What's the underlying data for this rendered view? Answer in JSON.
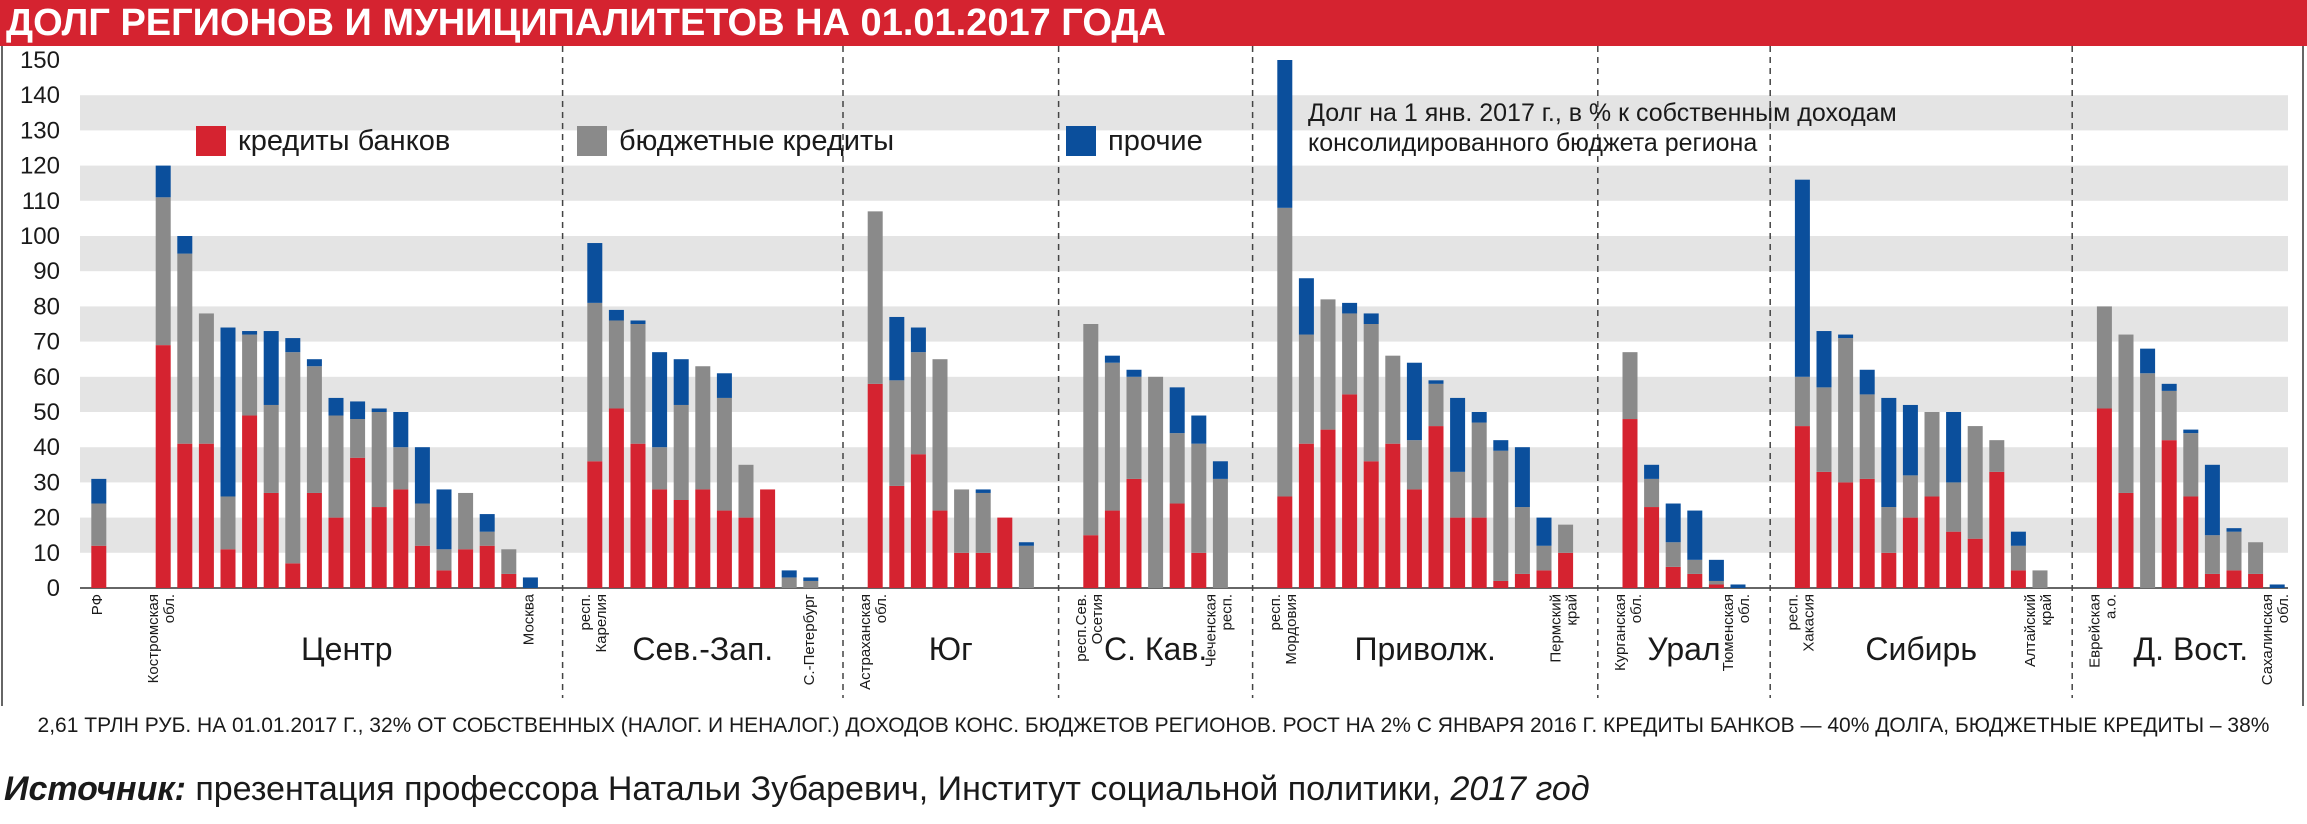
{
  "title": "ДОЛГ РЕГИОНОВ И МУНИЦИПАЛИТЕТОВ НА 01.01.2017 ГОДА",
  "footnote": "2,61 ТРЛН РУБ. НА 01.01.2017 Г., 32% ОТ СОБСТВЕННЫХ (НАЛОГ. И НЕНАЛОГ.) ДОХОДОВ КОНС. БЮДЖЕТОВ РЕГИОНОВ. РОСТ НА 2% С ЯНВАРЯ 2016 Г. КРЕДИТЫ БАНКОВ — 40% ДОЛГА, БЮДЖЕТНЫЕ КРЕДИТЫ – 38%",
  "source": {
    "lead": "Источник:",
    "text": " презентация профессора Натальи Зубаревич, Институт  социальной политики, ",
    "year": "2017 год"
  },
  "chart_data": {
    "type": "bar",
    "stacked": true,
    "annotation": "Долг на 1 янв. 2017 г., в % к собственным доходам консолидированного бюджета региона",
    "annotation_lines": [
      "Долг на 1 янв. 2017 г., в % к собственным доходам",
      "консолидированного бюджета региона"
    ],
    "ylim": [
      0,
      150
    ],
    "yticks": [
      0,
      10,
      20,
      30,
      40,
      50,
      60,
      70,
      80,
      90,
      100,
      110,
      120,
      130,
      140,
      150
    ],
    "grid": "alternating horizontal bands",
    "legend_position": "top",
    "series": [
      {
        "name": "кредиты банков",
        "color": "#d52330"
      },
      {
        "name": "бюджетные кредиты",
        "color": "#8a8a8a"
      },
      {
        "name": "прочие",
        "color": "#0b4f9c"
      }
    ],
    "groups": [
      {
        "name": "",
        "bars": [
          {
            "label": "РФ",
            "values": [
              12,
              12,
              7
            ]
          }
        ]
      },
      {
        "name": "Центр",
        "bars": [
          {
            "label": "Костромская обл.",
            "values": [
              69,
              42,
              9
            ]
          },
          {
            "label": "",
            "values": [
              41,
              54,
              5
            ]
          },
          {
            "label": "",
            "values": [
              41,
              37,
              0
            ]
          },
          {
            "label": "",
            "values": [
              11,
              15,
              48
            ]
          },
          {
            "label": "",
            "values": [
              49,
              23,
              1
            ]
          },
          {
            "label": "",
            "values": [
              27,
              25,
              21
            ]
          },
          {
            "label": "",
            "values": [
              7,
              60,
              4
            ]
          },
          {
            "label": "",
            "values": [
              27,
              36,
              2
            ]
          },
          {
            "label": "",
            "values": [
              20,
              29,
              5
            ]
          },
          {
            "label": "",
            "values": [
              37,
              11,
              5
            ]
          },
          {
            "label": "",
            "values": [
              23,
              27,
              1
            ]
          },
          {
            "label": "",
            "values": [
              28,
              12,
              10
            ]
          },
          {
            "label": "",
            "values": [
              12,
              12,
              16
            ]
          },
          {
            "label": "",
            "values": [
              5,
              6,
              17
            ]
          },
          {
            "label": "",
            "values": [
              11,
              16,
              0
            ]
          },
          {
            "label": "",
            "values": [
              12,
              4,
              5
            ]
          },
          {
            "label": "",
            "values": [
              4,
              7,
              0
            ]
          },
          {
            "label": "Москва",
            "values": [
              0,
              0,
              3
            ]
          }
        ]
      },
      {
        "name": "Сев.-Зап.",
        "bars": [
          {
            "label": "респ. Карелия",
            "values": [
              36,
              45,
              17
            ]
          },
          {
            "label": "",
            "values": [
              51,
              25,
              3
            ]
          },
          {
            "label": "",
            "values": [
              41,
              34,
              1
            ]
          },
          {
            "label": "",
            "values": [
              28,
              12,
              27
            ]
          },
          {
            "label": "",
            "values": [
              25,
              27,
              13
            ]
          },
          {
            "label": "",
            "values": [
              28,
              35,
              0
            ]
          },
          {
            "label": "",
            "values": [
              22,
              32,
              7
            ]
          },
          {
            "label": "",
            "values": [
              20,
              15,
              0
            ]
          },
          {
            "label": "",
            "values": [
              28,
              0,
              0
            ]
          },
          {
            "label": "",
            "values": [
              0,
              3,
              2
            ]
          },
          {
            "label": "С.-Петербург",
            "values": [
              0,
              2,
              1
            ]
          }
        ]
      },
      {
        "name": "Юг",
        "bars": [
          {
            "label": "Астраханская обл.",
            "values": [
              58,
              49,
              0
            ]
          },
          {
            "label": "",
            "values": [
              29,
              30,
              18
            ]
          },
          {
            "label": "",
            "values": [
              38,
              29,
              7
            ]
          },
          {
            "label": "",
            "values": [
              22,
              43,
              0
            ]
          },
          {
            "label": "",
            "values": [
              10,
              18,
              0
            ]
          },
          {
            "label": "",
            "values": [
              10,
              17,
              1
            ]
          },
          {
            "label": "",
            "values": [
              20,
              0,
              0
            ]
          },
          {
            "label": "",
            "values": [
              0,
              12,
              1
            ]
          }
        ]
      },
      {
        "name": "С. Кав.",
        "bars": [
          {
            "label": "респ.Сев. Осетия",
            "values": [
              15,
              60,
              0
            ]
          },
          {
            "label": "",
            "values": [
              22,
              42,
              2
            ]
          },
          {
            "label": "",
            "values": [
              31,
              29,
              2
            ]
          },
          {
            "label": "",
            "values": [
              0,
              60,
              0
            ]
          },
          {
            "label": "",
            "values": [
              24,
              20,
              13
            ]
          },
          {
            "label": "",
            "values": [
              10,
              31,
              8
            ]
          },
          {
            "label": "Чеченская респ.",
            "values": [
              0,
              31,
              5
            ]
          }
        ]
      },
      {
        "name": "Приволж.",
        "bars": [
          {
            "label": "респ. Мордовия",
            "values": [
              26,
              82,
              42
            ]
          },
          {
            "label": "",
            "values": [
              41,
              31,
              16
            ]
          },
          {
            "label": "",
            "values": [
              45,
              37,
              0
            ]
          },
          {
            "label": "",
            "values": [
              55,
              23,
              3
            ]
          },
          {
            "label": "",
            "values": [
              36,
              39,
              3
            ]
          },
          {
            "label": "",
            "values": [
              41,
              25,
              0
            ]
          },
          {
            "label": "",
            "values": [
              28,
              14,
              22
            ]
          },
          {
            "label": "",
            "values": [
              46,
              12,
              1
            ]
          },
          {
            "label": "",
            "values": [
              20,
              13,
              21
            ]
          },
          {
            "label": "",
            "values": [
              20,
              27,
              3
            ]
          },
          {
            "label": "",
            "values": [
              2,
              37,
              3
            ]
          },
          {
            "label": "",
            "values": [
              4,
              19,
              17
            ]
          },
          {
            "label": "",
            "values": [
              5,
              7,
              8
            ]
          },
          {
            "label": "Пермский край",
            "values": [
              10,
              8,
              0
            ]
          }
        ]
      },
      {
        "name": "Урал",
        "bars": [
          {
            "label": "Курганская обл.",
            "values": [
              48,
              19,
              0
            ]
          },
          {
            "label": "",
            "values": [
              23,
              8,
              4
            ]
          },
          {
            "label": "",
            "values": [
              6,
              7,
              11
            ]
          },
          {
            "label": "",
            "values": [
              4,
              4,
              14
            ]
          },
          {
            "label": "",
            "values": [
              1,
              1,
              6
            ]
          },
          {
            "label": "Тюменская обл.",
            "values": [
              0,
              0,
              1
            ]
          }
        ]
      },
      {
        "name": "Сибирь",
        "bars": [
          {
            "label": "респ. Хакасия",
            "values": [
              46,
              14,
              56
            ]
          },
          {
            "label": "",
            "values": [
              33,
              24,
              16
            ]
          },
          {
            "label": "",
            "values": [
              30,
              41,
              1
            ]
          },
          {
            "label": "",
            "values": [
              31,
              24,
              7
            ]
          },
          {
            "label": "",
            "values": [
              10,
              13,
              31
            ]
          },
          {
            "label": "",
            "values": [
              20,
              12,
              20
            ]
          },
          {
            "label": "",
            "values": [
              26,
              24,
              0
            ]
          },
          {
            "label": "",
            "values": [
              16,
              14,
              20
            ]
          },
          {
            "label": "",
            "values": [
              14,
              32,
              0
            ]
          },
          {
            "label": "",
            "values": [
              33,
              9,
              0
            ]
          },
          {
            "label": "",
            "values": [
              5,
              7,
              4
            ]
          },
          {
            "label": "Алтайский край",
            "values": [
              0,
              5,
              0
            ]
          }
        ]
      },
      {
        "name": "Д. Вост.",
        "bars": [
          {
            "label": "Еврейская а.о.",
            "values": [
              51,
              29,
              0
            ]
          },
          {
            "label": "",
            "values": [
              27,
              45,
              0
            ]
          },
          {
            "label": "",
            "values": [
              0,
              61,
              7
            ]
          },
          {
            "label": "",
            "values": [
              42,
              14,
              2
            ]
          },
          {
            "label": "",
            "values": [
              26,
              18,
              1
            ]
          },
          {
            "label": "",
            "values": [
              4,
              11,
              20
            ]
          },
          {
            "label": "",
            "values": [
              5,
              11,
              1
            ]
          },
          {
            "label": "",
            "values": [
              4,
              9,
              0
            ]
          },
          {
            "label": "Сахалинская обл.",
            "values": [
              0,
              0,
              1
            ]
          }
        ]
      }
    ]
  }
}
